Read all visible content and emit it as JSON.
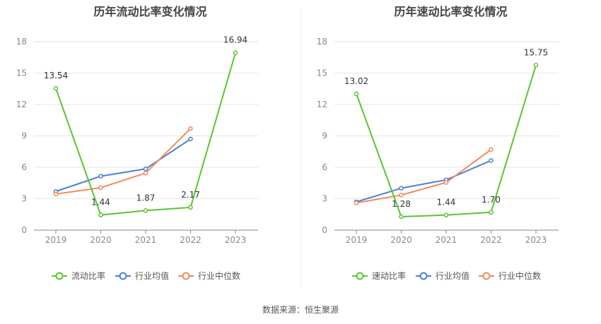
{
  "chart_data": [
    {
      "type": "line",
      "title": "历年流动比率变化情况",
      "categories": [
        "2019",
        "2020",
        "2021",
        "2022",
        "2023"
      ],
      "ylim": [
        0,
        18
      ],
      "yticks": [
        "0",
        "3",
        "6",
        "9",
        "12",
        "15",
        "18"
      ],
      "grid": true,
      "legend_position": "bottom",
      "series": [
        {
          "name": "流动比率",
          "color": "#5ac630",
          "values": [
            13.54,
            1.44,
            1.87,
            2.17,
            16.94
          ],
          "labels": [
            "13.54",
            "1.44",
            "1.87",
            "2.17",
            "16.94"
          ]
        },
        {
          "name": "行业均值",
          "color": "#4a7fd4",
          "values": [
            3.7,
            5.15,
            5.85,
            8.7,
            null
          ]
        },
        {
          "name": "行业中位数",
          "color": "#f08a5d",
          "values": [
            3.45,
            4.05,
            5.45,
            9.7,
            null
          ]
        }
      ]
    },
    {
      "type": "line",
      "title": "历年速动比率变化情况",
      "categories": [
        "2019",
        "2020",
        "2021",
        "2022",
        "2023"
      ],
      "ylim": [
        0,
        18
      ],
      "yticks": [
        "0",
        "3",
        "6",
        "9",
        "12",
        "15",
        "18"
      ],
      "grid": true,
      "legend_position": "bottom",
      "series": [
        {
          "name": "速动比率",
          "color": "#5ac630",
          "values": [
            13.02,
            1.28,
            1.44,
            1.7,
            15.75
          ],
          "labels": [
            "13.02",
            "1.28",
            "1.44",
            "1.70",
            "15.75"
          ]
        },
        {
          "name": "行业均值",
          "color": "#4a7fd4",
          "values": [
            2.7,
            4.0,
            4.8,
            6.65,
            null
          ]
        },
        {
          "name": "行业中位数",
          "color": "#f08a5d",
          "values": [
            2.6,
            3.35,
            4.55,
            7.7,
            null
          ]
        }
      ]
    }
  ],
  "source": "数据来源：恒生聚源"
}
